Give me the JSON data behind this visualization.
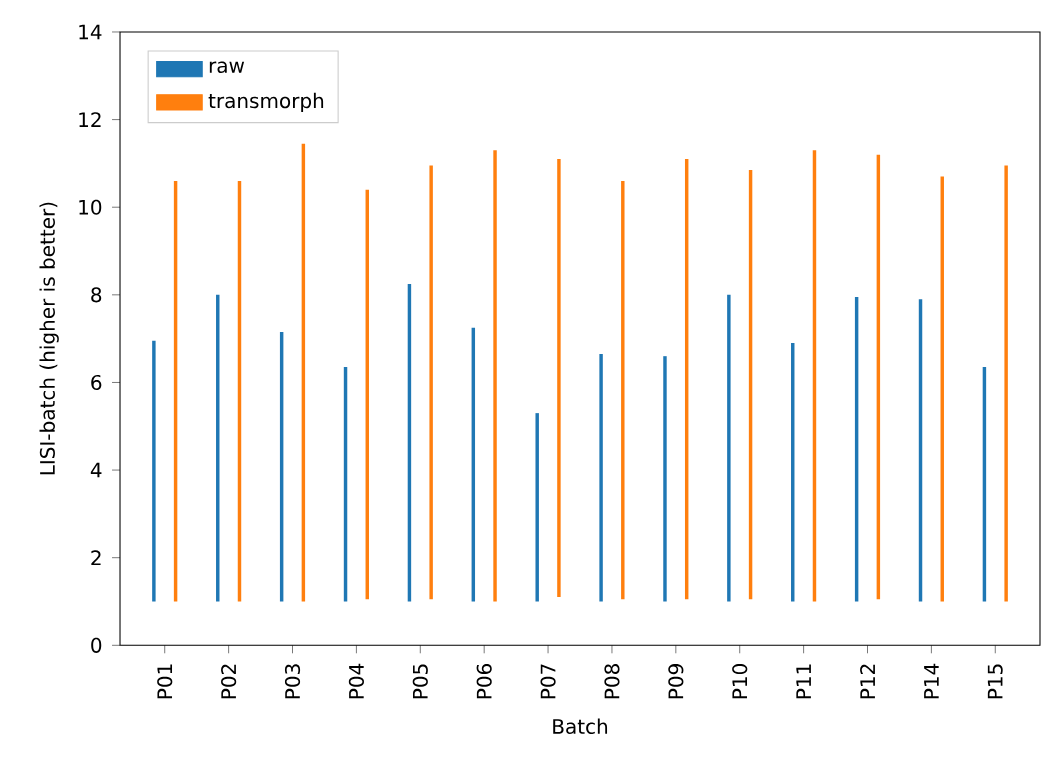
{
  "chart_data": {
    "type": "bar",
    "xlabel": "Batch",
    "ylabel": "LISI-batch (higher is better)",
    "categories": [
      "P01",
      "P02",
      "P03",
      "P04",
      "P05",
      "P06",
      "P07",
      "P08",
      "P09",
      "P10",
      "P11",
      "P12",
      "P14",
      "P15"
    ],
    "series": [
      {
        "name": "raw",
        "color": "#1f77b4",
        "base": [
          1.0,
          1.0,
          1.0,
          1.0,
          1.0,
          1.0,
          1.0,
          1.0,
          1.0,
          1.0,
          1.0,
          1.0,
          1.0,
          1.0
        ],
        "values": [
          5.95,
          7.0,
          6.15,
          5.35,
          7.25,
          6.25,
          4.3,
          5.65,
          5.6,
          7.0,
          5.9,
          6.95,
          6.9,
          5.35
        ]
      },
      {
        "name": "transmorph",
        "color": "#ff7f0e",
        "base": [
          1.0,
          1.0,
          1.0,
          1.05,
          1.05,
          1.0,
          1.1,
          1.05,
          1.05,
          1.05,
          1.0,
          1.05,
          1.0,
          1.0
        ],
        "values": [
          9.6,
          9.6,
          10.45,
          9.35,
          9.9,
          10.3,
          10.0,
          9.55,
          10.05,
          9.8,
          10.3,
          10.15,
          9.7,
          9.95
        ]
      }
    ],
    "ylim": [
      0,
      14
    ],
    "yticks": [
      0,
      2,
      4,
      6,
      8,
      10,
      12,
      14
    ],
    "legend": "top left"
  }
}
